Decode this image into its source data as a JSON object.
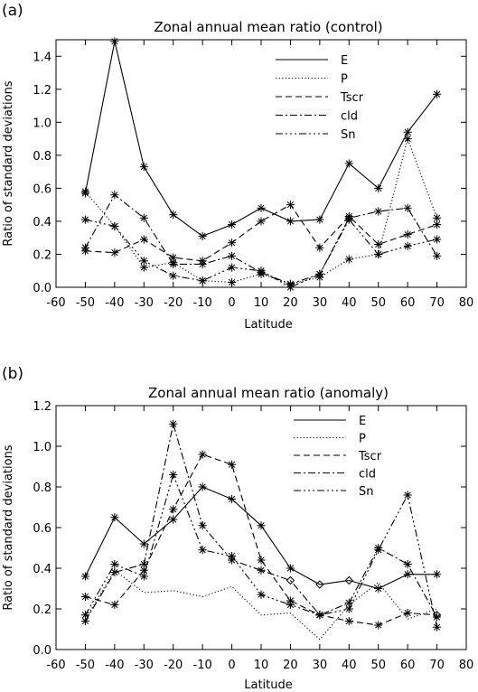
{
  "chart_data": [
    {
      "type": "line",
      "panel_label": "(a)",
      "title": "Zonal annual mean ratio (control)",
      "xlabel": "Latitude",
      "ylabel": "Ratio of standard deviations",
      "xlim": [
        -60,
        80
      ],
      "ylim": [
        0,
        1.5
      ],
      "xticks": [
        "-60",
        "-50",
        "-40",
        "-30",
        "-20",
        "-10",
        "0",
        "10",
        "20",
        "30",
        "40",
        "50",
        "60",
        "70",
        "80"
      ],
      "yticks": [
        "0.0",
        "0.2",
        "0.4",
        "0.6",
        "0.8",
        "1.0",
        "1.2",
        "1.4"
      ],
      "ytick_values": [
        0,
        0.2,
        0.4,
        0.6,
        0.8,
        1.0,
        1.2,
        1.4
      ],
      "xtick_values": [
        -60,
        -50,
        -40,
        -30,
        -20,
        -10,
        0,
        10,
        20,
        30,
        40,
        50,
        60,
        70,
        80
      ],
      "legend_position": "top-right",
      "x": [
        -50,
        -40,
        -30,
        -20,
        -10,
        0,
        10,
        20,
        30,
        40,
        50,
        60,
        70
      ],
      "series": [
        {
          "name": "E",
          "dash": "solid",
          "marker": "star",
          "values": [
            0.57,
            1.49,
            0.73,
            0.44,
            0.31,
            0.38,
            0.48,
            0.4,
            0.41,
            0.75,
            0.6,
            0.94,
            1.17
          ]
        },
        {
          "name": "P",
          "dash": "dotted",
          "marker": "star",
          "values": [
            0.58,
            0.37,
            0.12,
            0.15,
            0.04,
            0.03,
            0.08,
            0.02,
            0.06,
            0.17,
            0.2,
            0.9,
            0.42
          ]
        },
        {
          "name": "Tscr",
          "dash": "dashed",
          "marker": "star",
          "values": [
            0.22,
            0.21,
            0.29,
            0.18,
            0.16,
            0.27,
            0.4,
            0.5,
            0.24,
            0.43,
            0.26,
            0.32,
            0.38
          ]
        },
        {
          "name": "cld",
          "dash": "dashdot",
          "marker": "star",
          "values": [
            0.24,
            0.56,
            0.42,
            0.14,
            0.14,
            0.19,
            0.09,
            0.02,
            0.08,
            0.42,
            0.46,
            0.48,
            0.19
          ]
        },
        {
          "name": "Sn",
          "dash": "dashdotdotdot",
          "marker": "star",
          "values": [
            0.41,
            0.37,
            0.16,
            0.07,
            0.04,
            0.12,
            0.1,
            0.0,
            0.08,
            0.41,
            0.2,
            0.25,
            0.29
          ]
        }
      ]
    },
    {
      "type": "line",
      "panel_label": "(b)",
      "title": "Zonal annual mean ratio (anomaly)",
      "xlabel": "Latitude",
      "ylabel": "Ratio of standard deviations",
      "xlim": [
        -60,
        80
      ],
      "ylim": [
        0,
        1.2
      ],
      "xticks": [
        "-60",
        "-50",
        "-40",
        "-30",
        "-20",
        "-10",
        "0",
        "10",
        "20",
        "30",
        "40",
        "50",
        "60",
        "70",
        "80"
      ],
      "yticks": [
        "0.0",
        "0.2",
        "0.4",
        "0.6",
        "0.8",
        "1.0",
        "1.2"
      ],
      "ytick_values": [
        0,
        0.2,
        0.4,
        0.6,
        0.8,
        1.0,
        1.2
      ],
      "xtick_values": [
        -60,
        -50,
        -40,
        -30,
        -20,
        -10,
        0,
        10,
        20,
        30,
        40,
        50,
        60,
        70,
        80
      ],
      "legend_position": "top-right",
      "x": [
        -50,
        -40,
        -30,
        -20,
        -10,
        0,
        10,
        20,
        30,
        40,
        50,
        60,
        70
      ],
      "series": [
        {
          "name": "E",
          "dash": "solid",
          "marker": "star",
          "values": [
            0.36,
            0.65,
            0.52,
            0.64,
            0.8,
            0.74,
            0.61,
            0.4,
            0.32,
            0.34,
            0.3,
            0.37,
            0.37
          ],
          "diamond_points": [
            30,
            40
          ]
        },
        {
          "name": "P",
          "dash": "dotted",
          "marker": "none",
          "values": [
            0.15,
            0.39,
            0.28,
            0.29,
            0.26,
            0.31,
            0.17,
            0.18,
            0.05,
            0.22,
            0.33,
            0.15,
            0.2
          ]
        },
        {
          "name": "Tscr",
          "dash": "dashed",
          "marker": "star",
          "values": [
            0.26,
            0.22,
            0.39,
            0.69,
            0.96,
            0.91,
            0.44,
            0.24,
            0.17,
            0.14,
            0.12,
            0.18,
            0.17
          ],
          "diamond_points": [
            70
          ]
        },
        {
          "name": "cld",
          "dash": "dashdot",
          "marker": "star",
          "values": [
            0.14,
            0.38,
            0.42,
            1.11,
            0.61,
            0.44,
            0.39,
            0.34,
            0.17,
            0.23,
            0.5,
            0.42,
            0.16
          ],
          "diamond_points": [
            20
          ]
        },
        {
          "name": "Sn",
          "dash": "dashdotdotdot",
          "marker": "star",
          "values": [
            0.17,
            0.42,
            0.36,
            0.86,
            0.49,
            0.46,
            0.27,
            0.22,
            0.17,
            0.2,
            0.49,
            0.76,
            0.11
          ]
        }
      ]
    }
  ]
}
